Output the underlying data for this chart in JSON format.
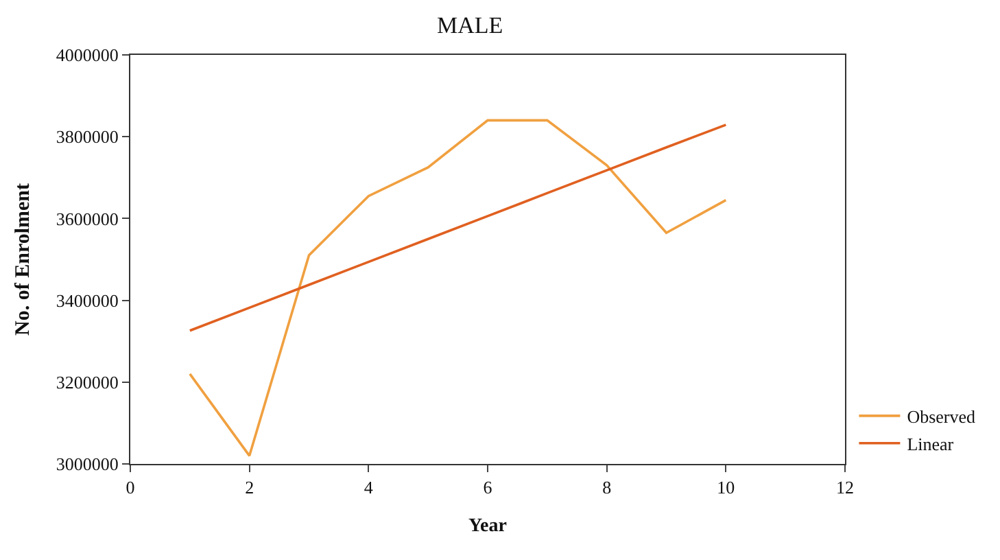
{
  "chart_data": {
    "type": "line",
    "title": "MALE",
    "xlabel": "Year",
    "ylabel": "No. of Enrolment",
    "x": [
      1,
      2,
      3,
      4,
      5,
      6,
      7,
      8,
      9,
      10
    ],
    "series": [
      {
        "name": "Observed",
        "color": "#f0a040",
        "values": [
          3220000,
          3020000,
          3510000,
          3655000,
          3725000,
          3840000,
          3840000,
          3730000,
          3565000,
          3645000
        ]
      },
      {
        "name": "Linear",
        "color": "#e06020",
        "values": [
          3326000,
          3382000,
          3438000,
          3494000,
          3550000,
          3606000,
          3662000,
          3718000,
          3774000,
          3829000
        ]
      }
    ],
    "xlim": [
      0,
      12
    ],
    "xticks": [
      0,
      2,
      4,
      6,
      8,
      10,
      12
    ],
    "ylim": [
      3000000,
      4000000
    ],
    "yticks": [
      3000000,
      3200000,
      3400000,
      3600000,
      3800000,
      4000000
    ],
    "legend": "bottom right",
    "marker": "none",
    "line_style": "solid"
  }
}
